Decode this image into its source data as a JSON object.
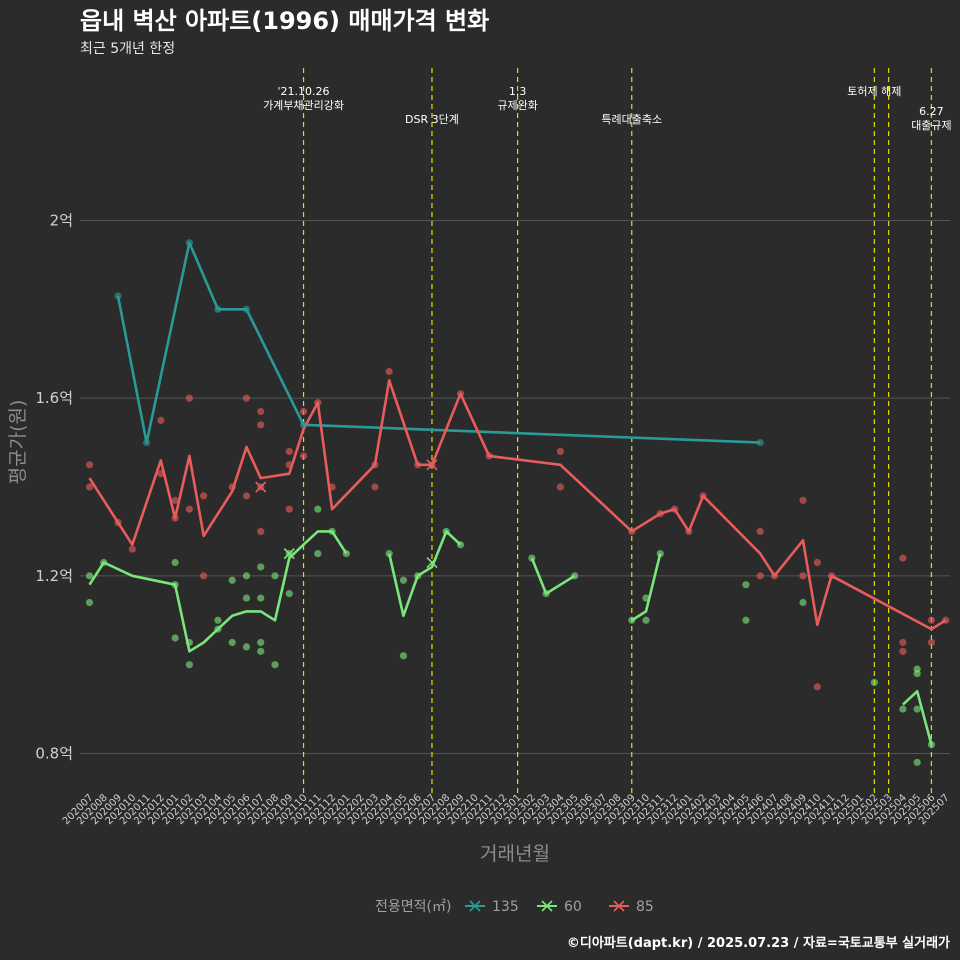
{
  "title": "읍내 벽산 아파트(1996) 매매가격 변화",
  "subtitle": "최근 5개년 한정",
  "caption": "©디아파트(dapt.kr) / 2025.07.23 / 자료=국토교통부 실거래가",
  "colors": {
    "background": "#2b2b2b",
    "grid": "#555555",
    "event_line": "#e0e000"
  },
  "chart_data": {
    "type": "line",
    "title": "읍내 벽산 아파트(1996) 매매가격 변화",
    "subtitle": "최근 5개년 한정",
    "xlabel": "거래년월",
    "ylabel": "평균가(원)",
    "ylim": [
      0.7,
      2.1
    ],
    "yticks": [
      {
        "v": 0.8,
        "label": "0.8억"
      },
      {
        "v": 1.2,
        "label": "1.2억"
      },
      {
        "v": 1.6,
        "label": "1.6억"
      },
      {
        "v": 2.0,
        "label": "2억"
      }
    ],
    "grid": true,
    "legend_position": "bottom",
    "legend_title": "전용면적(㎡)",
    "months": [
      "202007",
      "202008",
      "202009",
      "202010",
      "202011",
      "202012",
      "202101",
      "202102",
      "202103",
      "202104",
      "202105",
      "202106",
      "202107",
      "202108",
      "202109",
      "202110",
      "202111",
      "202112",
      "202201",
      "202202",
      "202203",
      "202204",
      "202205",
      "202206",
      "202207",
      "202208",
      "202209",
      "202210",
      "202211",
      "202212",
      "202301",
      "202302",
      "202303",
      "202304",
      "202305",
      "202306",
      "202307",
      "202308",
      "202309",
      "202310",
      "202311",
      "202312",
      "202401",
      "202402",
      "202403",
      "202404",
      "202405",
      "202406",
      "202407",
      "202408",
      "202409",
      "202410",
      "202411",
      "202412",
      "202501",
      "202502",
      "202503",
      "202504",
      "202505",
      "202506",
      "202507"
    ],
    "events": [
      {
        "month": "202110",
        "lines": [
          "'21.10.26",
          "가계부채관리강화"
        ],
        "level": 0
      },
      {
        "month": "202207",
        "lines": [
          "DSR 3단계"
        ],
        "level": 1
      },
      {
        "month": "202301",
        "lines": [
          "1.3",
          "규제완화"
        ],
        "level": 0
      },
      {
        "month": "202309",
        "lines": [
          "특례대출축소"
        ],
        "level": 1
      },
      {
        "month": "202502",
        "lines": [
          "토허제 해제"
        ],
        "level": 0
      },
      {
        "month": "202503",
        "lines": [],
        "level": 0
      },
      {
        "month": "202506",
        "lines": [
          "6.27",
          "대출규제"
        ],
        "level": 2
      }
    ],
    "series": [
      {
        "name": "135",
        "color": "#2a9a98",
        "line": [
          [
            "202009",
            1.83
          ],
          [
            "202011",
            1.5
          ],
          [
            "202102",
            1.95
          ],
          [
            "202104",
            1.8
          ],
          [
            "202106",
            1.8
          ],
          [
            "202110",
            1.54
          ],
          [
            "202406",
            1.5
          ]
        ],
        "points": [
          [
            "202009",
            1.83
          ],
          [
            "202011",
            1.5
          ],
          [
            "202102",
            1.95
          ],
          [
            "202104",
            1.8
          ],
          [
            "202106",
            1.8
          ],
          [
            "202110",
            1.54
          ],
          [
            "202406",
            1.5
          ]
        ],
        "crosses": []
      },
      {
        "name": "60",
        "color": "#7ae67a",
        "line": [
          [
            [
              "202007",
              1.18
            ],
            [
              "202008",
              1.23
            ],
            [
              "202010",
              1.2
            ],
            [
              "202101",
              1.18
            ],
            [
              "202102",
              1.03
            ],
            [
              "202103",
              1.05
            ],
            [
              "202104",
              1.08
            ],
            [
              "202105",
              1.11
            ],
            [
              "202106",
              1.12
            ],
            [
              "202107",
              1.12
            ],
            [
              "202108",
              1.1
            ],
            [
              "202109",
              1.24
            ],
            [
              "202110",
              1.27
            ],
            [
              "202111",
              1.3
            ],
            [
              "202112",
              1.3
            ],
            [
              "202201",
              1.25
            ]
          ],
          [
            [
              "202204",
              1.25
            ],
            [
              "202205",
              1.11
            ],
            [
              "202206",
              1.2
            ],
            [
              "202207",
              1.22
            ],
            [
              "202208",
              1.3
            ],
            [
              "202209",
              1.27
            ]
          ],
          [
            [
              "202302",
              1.24
            ],
            [
              "202303",
              1.16
            ],
            [
              "202305",
              1.2
            ]
          ],
          [
            [
              "202309",
              1.1
            ],
            [
              "202310",
              1.12
            ],
            [
              "202311",
              1.25
            ]
          ],
          [
            [
              "202504",
              0.91
            ],
            [
              "202505",
              0.94
            ],
            [
              "202506",
              0.82
            ]
          ]
        ],
        "points": [
          [
            "202007",
            1.2
          ],
          [
            "202007",
            1.14
          ],
          [
            "202008",
            1.23
          ],
          [
            "202101",
            1.06
          ],
          [
            "202101",
            1.18
          ],
          [
            "202101",
            1.23
          ],
          [
            "202102",
            1.0
          ],
          [
            "202102",
            1.05
          ],
          [
            "202104",
            1.1
          ],
          [
            "202104",
            1.08
          ],
          [
            "202105",
            1.05
          ],
          [
            "202105",
            1.19
          ],
          [
            "202106",
            1.2
          ],
          [
            "202106",
            1.15
          ],
          [
            "202106",
            1.04
          ],
          [
            "202107",
            1.22
          ],
          [
            "202107",
            1.15
          ],
          [
            "202107",
            1.05
          ],
          [
            "202107",
            1.03
          ],
          [
            "202108",
            1.2
          ],
          [
            "202108",
            1.0
          ],
          [
            "202109",
            1.16
          ],
          [
            "202109",
            1.25
          ],
          [
            "202111",
            1.35
          ],
          [
            "202111",
            1.25
          ],
          [
            "202112",
            1.3
          ],
          [
            "202201",
            1.25
          ],
          [
            "202204",
            1.25
          ],
          [
            "202205",
            1.19
          ],
          [
            "202205",
            1.02
          ],
          [
            "202206",
            1.2
          ],
          [
            "202208",
            1.3
          ],
          [
            "202209",
            1.27
          ],
          [
            "202302",
            1.24
          ],
          [
            "202303",
            1.16
          ],
          [
            "202305",
            1.2
          ],
          [
            "202309",
            1.1
          ],
          [
            "202310",
            1.1
          ],
          [
            "202310",
            1.15
          ],
          [
            "202311",
            1.25
          ],
          [
            "202405",
            1.18
          ],
          [
            "202405",
            1.1
          ],
          [
            "202409",
            1.14
          ],
          [
            "202502",
            0.96
          ],
          [
            "202504",
            0.9
          ],
          [
            "202505",
            0.99
          ],
          [
            "202505",
            0.98
          ],
          [
            "202505",
            0.9
          ],
          [
            "202505",
            0.78
          ],
          [
            "202506",
            0.82
          ]
        ],
        "crosses": [
          [
            "202109",
            1.25
          ],
          [
            "202207",
            1.23
          ]
        ]
      },
      {
        "name": "85",
        "color": "#e85c5c",
        "line": [
          [
            [
              "202007",
              1.42
            ],
            [
              "202009",
              1.32
            ],
            [
              "202010",
              1.27
            ],
            [
              "202012",
              1.46
            ],
            [
              "202101",
              1.33
            ],
            [
              "202102",
              1.47
            ],
            [
              "202103",
              1.29
            ],
            [
              "202105",
              1.39
            ],
            [
              "202106",
              1.49
            ],
            [
              "202107",
              1.42
            ],
            [
              "202109",
              1.43
            ],
            [
              "202110",
              1.53
            ],
            [
              "202111",
              1.59
            ],
            [
              "202112",
              1.35
            ],
            [
              "202203",
              1.45
            ],
            [
              "202204",
              1.64
            ],
            [
              "202206",
              1.45
            ],
            [
              "202207",
              1.45
            ],
            [
              "202209",
              1.61
            ],
            [
              "202211",
              1.47
            ],
            [
              "202304",
              1.45
            ],
            [
              "202309",
              1.3
            ],
            [
              "202311",
              1.34
            ],
            [
              "202312",
              1.35
            ],
            [
              "202401",
              1.3
            ],
            [
              "202402",
              1.38
            ],
            [
              "202406",
              1.25
            ],
            [
              "202407",
              1.2
            ],
            [
              "202409",
              1.28
            ],
            [
              "202410",
              1.09
            ],
            [
              "202411",
              1.2
            ],
            [
              "202506",
              1.08
            ],
            [
              "202507",
              1.1
            ]
          ]
        ],
        "points": [
          [
            "202007",
            1.45
          ],
          [
            "202007",
            1.4
          ],
          [
            "202009",
            1.32
          ],
          [
            "202010",
            1.26
          ],
          [
            "202012",
            1.55
          ],
          [
            "202012",
            1.43
          ],
          [
            "202101",
            1.37
          ],
          [
            "202101",
            1.33
          ],
          [
            "202102",
            1.6
          ],
          [
            "202102",
            1.35
          ],
          [
            "202103",
            1.38
          ],
          [
            "202103",
            1.2
          ],
          [
            "202105",
            1.4
          ],
          [
            "202106",
            1.6
          ],
          [
            "202106",
            1.38
          ],
          [
            "202107",
            1.57
          ],
          [
            "202107",
            1.54
          ],
          [
            "202107",
            1.4
          ],
          [
            "202107",
            1.3
          ],
          [
            "202109",
            1.48
          ],
          [
            "202109",
            1.45
          ],
          [
            "202109",
            1.35
          ],
          [
            "202110",
            1.57
          ],
          [
            "202110",
            1.47
          ],
          [
            "202111",
            1.59
          ],
          [
            "202112",
            1.4
          ],
          [
            "202203",
            1.45
          ],
          [
            "202203",
            1.4
          ],
          [
            "202204",
            1.66
          ],
          [
            "202206",
            1.45
          ],
          [
            "202207",
            1.45
          ],
          [
            "202209",
            1.61
          ],
          [
            "202211",
            1.47
          ],
          [
            "202304",
            1.48
          ],
          [
            "202304",
            1.4
          ],
          [
            "202309",
            1.3
          ],
          [
            "202311",
            1.34
          ],
          [
            "202312",
            1.35
          ],
          [
            "202401",
            1.3
          ],
          [
            "202402",
            1.38
          ],
          [
            "202406",
            1.3
          ],
          [
            "202406",
            1.2
          ],
          [
            "202407",
            1.2
          ],
          [
            "202409",
            1.37
          ],
          [
            "202409",
            1.2
          ],
          [
            "202410",
            1.23
          ],
          [
            "202410",
            0.95
          ],
          [
            "202411",
            1.2
          ],
          [
            "202504",
            1.24
          ],
          [
            "202504",
            1.05
          ],
          [
            "202504",
            1.03
          ],
          [
            "202506",
            1.1
          ],
          [
            "202506",
            1.05
          ],
          [
            "202507",
            1.1
          ]
        ],
        "crosses": [
          [
            "202107",
            1.4
          ],
          [
            "202207",
            1.45
          ]
        ]
      }
    ]
  }
}
